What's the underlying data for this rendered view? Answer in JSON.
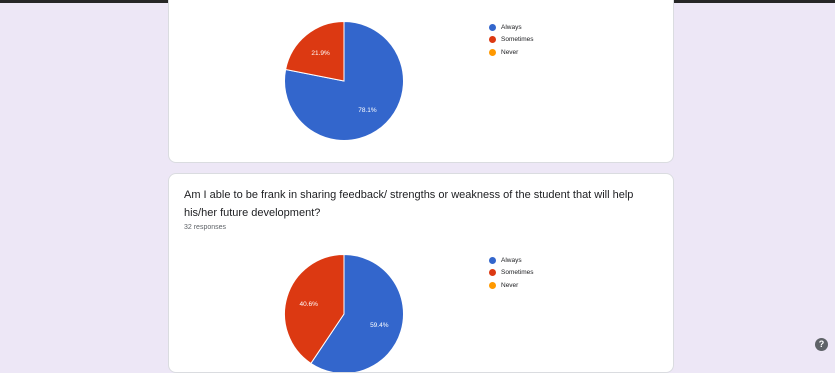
{
  "cards": [
    {
      "question": "",
      "responses": ""
    },
    {
      "question": "Am I able to be frank in sharing feedback/ strengths or weakness of the student that will help his/her future development?",
      "responses": "32 responses"
    }
  ],
  "chart_data": [
    {
      "type": "pie",
      "categories": [
        "Always",
        "Sometimes",
        "Never"
      ],
      "values": [
        78.1,
        21.9,
        0
      ],
      "labels": [
        "78.1%",
        "21.9%",
        ""
      ],
      "colors": [
        "#3366cc",
        "#dc3912",
        "#ff9900"
      ],
      "legend": "right"
    },
    {
      "type": "pie",
      "categories": [
        "Always",
        "Sometimes",
        "Never"
      ],
      "values": [
        59.4,
        40.6,
        0
      ],
      "labels": [
        "59.4%",
        "40.6%",
        ""
      ],
      "colors": [
        "#3366cc",
        "#dc3912",
        "#ff9900"
      ],
      "legend": "right"
    }
  ],
  "help_icon": {
    "glyph": "?",
    "icon": "help-icon"
  }
}
